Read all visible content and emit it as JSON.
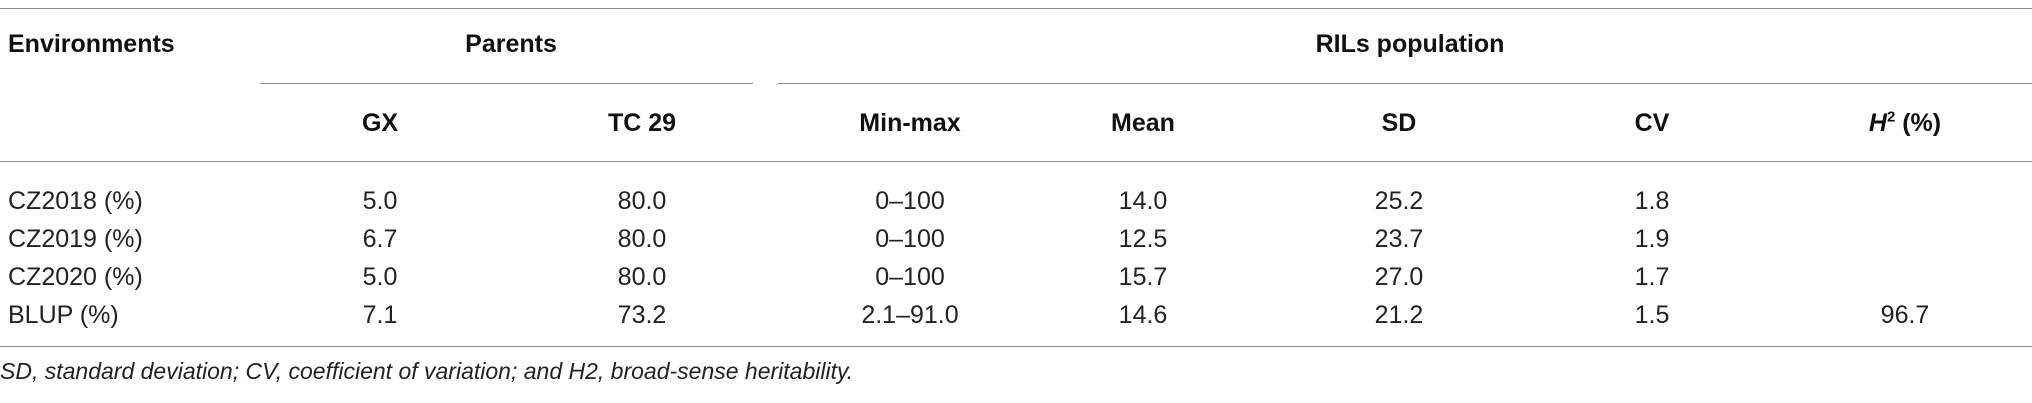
{
  "table": {
    "header_row1": {
      "environments": "Environments",
      "parents": "Parents",
      "rils_population": "RILs population"
    },
    "header_row2": {
      "gx": "GX",
      "tc29": "TC 29",
      "min_max": "Min-max",
      "mean": "Mean",
      "sd": "SD",
      "cv": "CV",
      "h2_letter": "H",
      "h2_sup": "2",
      "h2_unit": " (%)"
    },
    "rows": [
      {
        "env": "CZ2018 (%)",
        "gx": "5.0",
        "tc29": "80.0",
        "min_max": "0–100",
        "mean": "14.0",
        "sd": "25.2",
        "cv": "1.8",
        "h2": ""
      },
      {
        "env": "CZ2019 (%)",
        "gx": "6.7",
        "tc29": "80.0",
        "min_max": "0–100",
        "mean": "12.5",
        "sd": "23.7",
        "cv": "1.9",
        "h2": ""
      },
      {
        "env": "CZ2020 (%)",
        "gx": "5.0",
        "tc29": "80.0",
        "min_max": "0–100",
        "mean": "15.7",
        "sd": "27.0",
        "cv": "1.7",
        "h2": ""
      },
      {
        "env": "BLUP (%)",
        "gx": "7.1",
        "tc29": "73.2",
        "min_max": "2.1–91.0",
        "mean": "14.6",
        "sd": "21.2",
        "cv": "1.5",
        "h2": "96.7"
      }
    ]
  },
  "footnote": "SD, standard deviation; CV, coefficient of variation; and H2, broad-sense heritability."
}
